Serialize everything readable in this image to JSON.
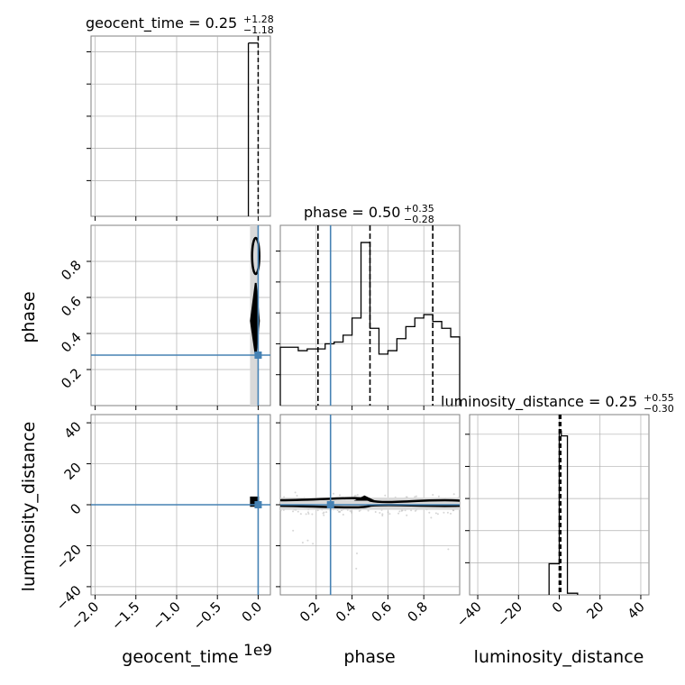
{
  "chart_data": [
    {
      "panel": "geocent_time-histogram",
      "type": "histogram",
      "title_param": "geocent_time",
      "title_value": "0.25",
      "title_plus": "+1.28",
      "title_minus": "−1.18",
      "xlim": [
        -2050000000.0,
        150000000.0
      ],
      "bins": [
        [
          -120000000.0,
          -10000000.0,
          0.8
        ],
        [
          -10000000.0,
          0.0,
          1.0
        ],
        [
          0.0,
          10000000.0,
          1.0
        ]
      ],
      "quantile_lines": [
        0.0,
        0.0,
        0.0
      ],
      "ytick_count": 6
    },
    {
      "panel": "phase-histogram",
      "type": "histogram",
      "title_param": "phase",
      "title_value": "0.50",
      "title_plus": "+0.35",
      "title_minus": "−0.28",
      "xlim": [
        0.0,
        1.0
      ],
      "ylim": [
        0,
        1.05
      ],
      "bins": [
        [
          0.0,
          0.1,
          0.34
        ],
        [
          0.1,
          0.15,
          0.32
        ],
        [
          0.15,
          0.2,
          0.33
        ],
        [
          0.2,
          0.25,
          0.33
        ],
        [
          0.25,
          0.3,
          0.36
        ],
        [
          0.3,
          0.35,
          0.37
        ],
        [
          0.35,
          0.4,
          0.41
        ],
        [
          0.4,
          0.45,
          0.51
        ],
        [
          0.45,
          0.5,
          0.95
        ],
        [
          0.5,
          0.55,
          0.45
        ],
        [
          0.55,
          0.6,
          0.3
        ],
        [
          0.6,
          0.65,
          0.32
        ],
        [
          0.65,
          0.7,
          0.39
        ],
        [
          0.7,
          0.75,
          0.46
        ],
        [
          0.75,
          0.8,
          0.51
        ],
        [
          0.8,
          0.85,
          0.53
        ],
        [
          0.85,
          0.9,
          0.49
        ],
        [
          0.9,
          0.95,
          0.45
        ],
        [
          0.95,
          1.0,
          0.4
        ]
      ],
      "quantile_lines": [
        0.21,
        0.5,
        0.85
      ],
      "truth": 0.28,
      "ytick_count": 6
    },
    {
      "panel": "luminosity_distance-histogram",
      "type": "histogram",
      "title_param": "luminosity_distance",
      "title_value": "0.25",
      "title_plus": "+0.55",
      "title_minus": "−0.30",
      "xlim": [
        -44,
        44
      ],
      "bins": [
        [
          -5,
          0,
          0.19
        ],
        [
          0,
          1,
          1.0
        ],
        [
          1,
          4,
          0.97
        ],
        [
          4,
          9,
          0.01
        ]
      ],
      "quantile_lines": [
        -0.05,
        0.25,
        0.8
      ],
      "ytick_count": 6
    },
    {
      "panel": "phase-vs-geocent_time",
      "type": "scatter",
      "xlim": [
        -2050000000.0,
        150000000.0
      ],
      "ylim": [
        0.0,
        1.0
      ],
      "truth": [
        0.0,
        0.28
      ],
      "yticks": [
        {
          "v": 0.2,
          "label": "0.2"
        },
        {
          "v": 0.4,
          "label": "0.4"
        },
        {
          "v": 0.6,
          "label": "0.6"
        },
        {
          "v": 0.8,
          "label": "0.8"
        }
      ],
      "ylabel": "phase"
    },
    {
      "panel": "luminosity_distance-vs-geocent_time",
      "type": "scatter",
      "xlim": [
        -2050000000.0,
        150000000.0
      ],
      "ylim": [
        -44,
        44
      ],
      "truth": [
        0.0,
        0.0
      ],
      "xticks": [
        {
          "v": -2000000000.0,
          "label": "−2.0"
        },
        {
          "v": -1500000000.0,
          "label": "−1.5"
        },
        {
          "v": -1000000000.0,
          "label": "−1.0"
        },
        {
          "v": -500000000.0,
          "label": "−0.5"
        },
        {
          "v": 0.0,
          "label": "0.0"
        }
      ],
      "yticks": [
        {
          "v": -40,
          "label": "−40"
        },
        {
          "v": -20,
          "label": "−20"
        },
        {
          "v": 0,
          "label": "0"
        },
        {
          "v": 20,
          "label": "20"
        },
        {
          "v": 40,
          "label": "40"
        }
      ],
      "xlabel": "geocent_time",
      "offset_text": "1e9",
      "ylabel": "luminosity_distance"
    },
    {
      "panel": "luminosity_distance-vs-phase",
      "type": "scatter",
      "xlim": [
        0.0,
        1.0
      ],
      "ylim": [
        -44,
        44
      ],
      "truth": [
        0.28,
        0.0
      ],
      "xticks": [
        {
          "v": 0.2,
          "label": "0.2"
        },
        {
          "v": 0.4,
          "label": "0.4"
        },
        {
          "v": 0.6,
          "label": "0.6"
        },
        {
          "v": 0.8,
          "label": "0.8"
        }
      ],
      "xlabel": "phase"
    },
    {
      "panel": "luminosity_distance-x-axis",
      "type": "histogram-axis",
      "xticks": [
        {
          "v": -40,
          "label": "−40"
        },
        {
          "v": -20,
          "label": "−20"
        },
        {
          "v": 0,
          "label": "0"
        },
        {
          "v": 20,
          "label": "20"
        },
        {
          "v": 40,
          "label": "40"
        }
      ],
      "xlabel": "luminosity_distance"
    }
  ],
  "colors": {
    "truth": "#4682b4",
    "line": "#000000",
    "grid": "#b0b0b0",
    "spine": "#808080",
    "fill": "#d9d9d9",
    "scatter": "#bbbbbb"
  }
}
